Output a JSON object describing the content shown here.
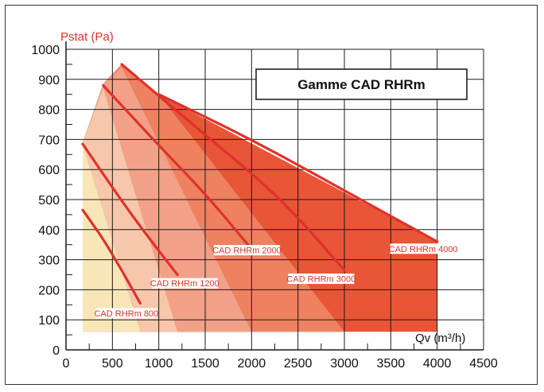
{
  "chart_data": {
    "type": "area",
    "title": "Gamme CAD RHRm",
    "ylabel": "Pstat (Pa)",
    "xlabel": "Qv (m³/h)",
    "xlim": [
      0,
      4500
    ],
    "ylim": [
      0,
      1000
    ],
    "xticks": [
      0,
      500,
      1000,
      1500,
      2000,
      2500,
      3000,
      3500,
      4000,
      4500
    ],
    "yticks": [
      0,
      100,
      200,
      300,
      400,
      500,
      600,
      700,
      800,
      900,
      1000
    ],
    "grid": true,
    "series": [
      {
        "name": "CAD RHRm 800",
        "color": "#f9e6b8",
        "zone": [
          [
            180,
            60
          ],
          [
            180,
            680
          ],
          [
            800,
            60
          ]
        ],
        "curve": [
          [
            180,
            465
          ],
          [
            400,
            370
          ],
          [
            600,
            265
          ],
          [
            800,
            155
          ]
        ]
      },
      {
        "name": "CAD RHRm 1200",
        "color": "#f6c7ab",
        "zone": [
          [
            180,
            60
          ],
          [
            180,
            690
          ],
          [
            400,
            870
          ],
          [
            1200,
            60
          ]
        ],
        "curve": [
          [
            180,
            685
          ],
          [
            500,
            540
          ],
          [
            800,
            410
          ],
          [
            1200,
            250
          ]
        ]
      },
      {
        "name": "CAD RHRm 2000",
        "color": "#f2a188",
        "zone": [
          [
            180,
            60
          ],
          [
            180,
            690
          ],
          [
            400,
            885
          ],
          [
            600,
            940
          ],
          [
            2000,
            60
          ]
        ],
        "curve": [
          [
            400,
            880
          ],
          [
            1000,
            680
          ],
          [
            1500,
            520
          ],
          [
            2000,
            335
          ]
        ]
      },
      {
        "name": "CAD RHRm 3000",
        "color": "#ee8160",
        "zone": [
          [
            180,
            60
          ],
          [
            180,
            690
          ],
          [
            400,
            885
          ],
          [
            600,
            950
          ],
          [
            1000,
            850
          ],
          [
            3000,
            60
          ]
        ],
        "curve": [
          [
            600,
            950
          ],
          [
            1500,
            715
          ],
          [
            2300,
            510
          ],
          [
            3000,
            265
          ]
        ]
      },
      {
        "name": "CAD RHRm 4000",
        "color": "#e85537",
        "zone": [
          [
            180,
            60
          ],
          [
            180,
            690
          ],
          [
            400,
            885
          ],
          [
            600,
            950
          ],
          [
            1000,
            850
          ],
          [
            4000,
            360
          ],
          [
            4000,
            60
          ]
        ],
        "curve": [
          [
            1000,
            850
          ],
          [
            2000,
            700
          ],
          [
            3000,
            530
          ],
          [
            4000,
            360
          ]
        ]
      }
    ],
    "labels": [
      {
        "text": "CAD RHRm 800",
        "x": 650,
        "y": 115
      },
      {
        "text": "CAD RHRm 1200",
        "x": 1280,
        "y": 215
      },
      {
        "text": "CAD RHRm 2000",
        "x": 1950,
        "y": 325
      },
      {
        "text": "CAD RHRm 3000",
        "x": 2750,
        "y": 230
      },
      {
        "text": "CAD RHRm 4000",
        "x": 3850,
        "y": 330
      }
    ]
  },
  "colors": {
    "curve": "#e0312a",
    "grid": "#1a1a1a",
    "axis_label": "#e0312a"
  }
}
